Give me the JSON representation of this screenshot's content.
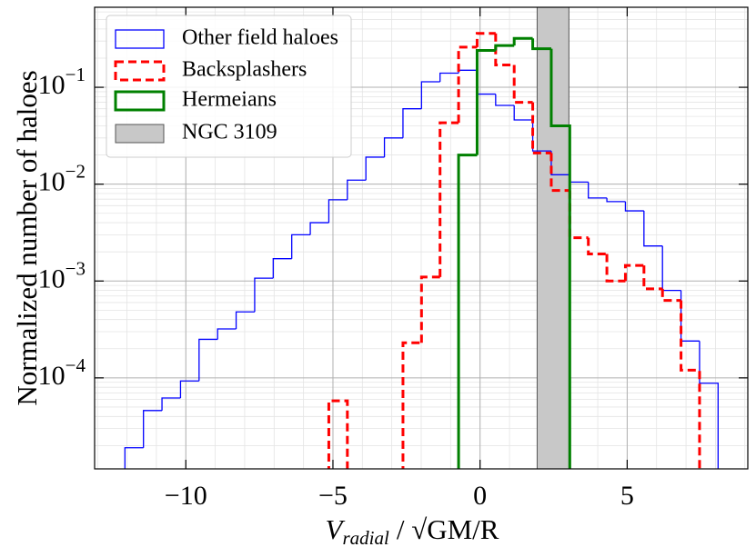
{
  "chart_data": {
    "type": "step-histogram",
    "xlabel": {
      "symbol": "V",
      "subscript": "radial",
      "rest": "/ √GM/R"
    },
    "ylabel": "Normalized number of haloes",
    "bins": [
      -12.07,
      -11.44,
      -10.81,
      -10.18,
      -9.55,
      -8.92,
      -8.29,
      -7.66,
      -7.03,
      -6.4,
      -5.77,
      -5.14,
      -4.51,
      -3.88,
      -3.25,
      -2.62,
      -1.99,
      -1.36,
      -0.73,
      -0.1,
      0.53,
      1.16,
      1.79,
      2.42,
      3.05,
      3.68,
      4.31,
      4.94,
      5.57,
      6.2,
      6.83,
      7.46,
      8.09
    ],
    "series": [
      {
        "name": "Other field haloes",
        "color": "#0000ff",
        "linestyle": "solid",
        "values": [
          1.9e-05,
          4.6e-05,
          6.2e-05,
          9.3e-05,
          0.00025,
          0.00032,
          0.00048,
          0.00107,
          0.0017,
          0.003,
          0.004,
          0.0069,
          0.011,
          0.019,
          0.03,
          0.06,
          0.114,
          0.14,
          0.15,
          0.085,
          0.065,
          0.046,
          0.022,
          0.0125,
          0.0105,
          0.0072,
          0.0066,
          0.0053,
          0.0023,
          0.0008,
          0.00024,
          8.8e-05
        ]
      },
      {
        "name": "Backsplashers",
        "color": "#ff0000",
        "linestyle": "dashed",
        "values": [
          null,
          null,
          null,
          null,
          null,
          null,
          null,
          null,
          null,
          null,
          null,
          5.8e-05,
          null,
          null,
          null,
          0.00023,
          0.0011,
          0.043,
          0.26,
          0.36,
          0.17,
          0.07,
          0.021,
          0.0086,
          0.0028,
          0.0019,
          0.001,
          0.00145,
          0.00083,
          0.00063,
          0.00012,
          null
        ]
      },
      {
        "name": "Hermeians",
        "color": "#008000",
        "linestyle": "solid",
        "values": [
          null,
          null,
          null,
          null,
          null,
          null,
          null,
          null,
          null,
          null,
          null,
          null,
          null,
          null,
          null,
          null,
          null,
          null,
          0.02,
          0.24,
          0.27,
          0.32,
          0.25,
          0.04,
          null,
          null,
          null,
          null,
          null,
          null,
          null,
          null
        ]
      }
    ],
    "span": {
      "name": "NGC 3109",
      "x": [
        1.94,
        3.02
      ],
      "color": "#c8c8c8"
    },
    "xlim": [
      -13.1,
      9.1
    ],
    "ylim": [
      1.15e-05,
      0.67
    ],
    "ylog": true,
    "xticks": [
      {
        "value": -10,
        "label": "−10"
      },
      {
        "value": -5,
        "label": "−5"
      },
      0,
      5
    ],
    "yticks": [
      {
        "value": 0.1,
        "label": "10−1"
      },
      {
        "value": 0.01,
        "label": "10−2"
      },
      {
        "value": 0.001,
        "label": "10−3"
      },
      {
        "value": 0.0001,
        "label": "10−4"
      }
    ],
    "grid": true,
    "legend": "upper left"
  }
}
